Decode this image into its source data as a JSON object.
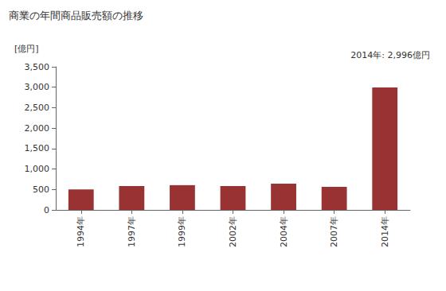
{
  "chart_data": {
    "type": "bar",
    "title": "商業の年間商品販売額の推移",
    "ylabel": "[億円]",
    "annotation": "2014年: 2,996億円",
    "categories": [
      "1994年",
      "1997年",
      "1999年",
      "2002年",
      "2004年",
      "2007年",
      "2014年"
    ],
    "values": [
      500,
      585,
      605,
      585,
      640,
      565,
      2996
    ],
    "color": "#993333",
    "ylim": [
      0,
      3500
    ],
    "yticks": [
      0,
      500,
      {
        "value": 1000,
        "label": "1,000"
      },
      {
        "value": 1500,
        "label": "1,500"
      },
      {
        "value": 2000,
        "label": "2,000"
      },
      {
        "value": 2500,
        "label": "2,500"
      },
      {
        "value": 3000,
        "label": "3,000"
      },
      {
        "value": 3500,
        "label": "3,500"
      }
    ],
    "grid": false
  }
}
